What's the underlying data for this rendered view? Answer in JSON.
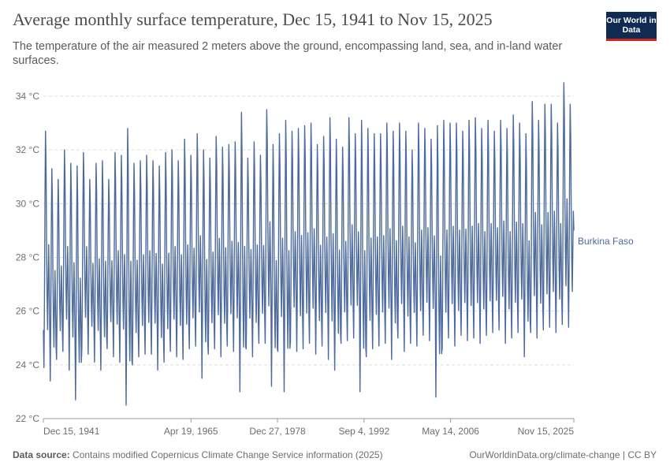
{
  "header": {
    "title": "Average monthly surface temperature, Dec 15, 1941 to Nov 15, 2025",
    "subtitle": "The temperature of the air measured 2 meters above the ground, encompassing land, sea, and in-land water surfaces.",
    "logo_text": "Our World in Data"
  },
  "footer": {
    "source_label": "Data source:",
    "source_text": "Contains modified Copernicus Climate Change Service information (2025)",
    "credit": "OurWorldinData.org/climate-change | CC BY"
  },
  "colors": {
    "series": "#4c6a9c",
    "grid": "#dddddd",
    "axis": "#999999",
    "logo_bg": "#0f2a53",
    "logo_accent": "#ce261e"
  },
  "chart_data": {
    "type": "line",
    "title": "Average monthly surface temperature, Dec 15, 1941 to Nov 15, 2025",
    "xlabel": "",
    "ylabel": "",
    "y_unit": "°C",
    "ylim": [
      22,
      34.5
    ],
    "yticks": [
      22,
      24,
      26,
      28,
      30,
      32,
      34
    ],
    "ytick_labels": [
      "22 °C",
      "24 °C",
      "26 °C",
      "28 °C",
      "30 °C",
      "32 °C",
      "34 °C"
    ],
    "x_range_years": [
      1941.95,
      2025.87
    ],
    "xticks": [
      {
        "year": 1941.95,
        "label": "Dec 15, 1941"
      },
      {
        "year": 1965.3,
        "label": "Apr 19, 1965"
      },
      {
        "year": 1978.99,
        "label": "Dec 27, 1978"
      },
      {
        "year": 1992.68,
        "label": "Sep 4, 1992"
      },
      {
        "year": 2006.37,
        "label": "May 14, 2006"
      },
      {
        "year": 2025.87,
        "label": "Nov 15, 2025"
      }
    ],
    "grid": true,
    "legend": "right, inline label at end of line",
    "series": [
      {
        "name": "Burkina Faso",
        "note": "Monthly values; annual cycle read from plot: Jan min, Apr/May max, Aug dip, Oct secondary peak",
        "start": "1941-12",
        "end": "2025-11",
        "annual_max_apr": {
          "1942": 32.7,
          "1943": 31.3,
          "1944": 30.9,
          "1945": 32.0,
          "1946": 31.5,
          "1947": 31.4,
          "1948": 31.9,
          "1949": 30.9,
          "1950": 31.5,
          "1951": 31.6,
          "1952": 30.9,
          "1953": 31.9,
          "1954": 31.8,
          "1955": 32.8,
          "1956": 31.5,
          "1957": 31.6,
          "1958": 31.8,
          "1959": 31.6,
          "1960": 31.4,
          "1961": 31.9,
          "1962": 32.0,
          "1963": 31.6,
          "1964": 32.4,
          "1965": 31.8,
          "1966": 32.6,
          "1967": 32.0,
          "1968": 31.7,
          "1969": 32.5,
          "1970": 32.1,
          "1971": 32.2,
          "1972": 32.3,
          "1973": 33.4,
          "1974": 31.7,
          "1975": 32.3,
          "1976": 31.8,
          "1977": 33.5,
          "1978": 32.2,
          "1979": 32.6,
          "1980": 33.1,
          "1981": 32.7,
          "1982": 32.8,
          "1983": 32.9,
          "1984": 33.0,
          "1985": 32.2,
          "1986": 32.5,
          "1987": 33.2,
          "1988": 32.4,
          "1989": 32.1,
          "1990": 33.2,
          "1991": 32.6,
          "1992": 33.1,
          "1993": 32.8,
          "1994": 32.6,
          "1995": 32.6,
          "1996": 33.0,
          "1997": 32.7,
          "1998": 33.0,
          "1999": 32.7,
          "2000": 32.0,
          "2001": 33.0,
          "2002": 32.8,
          "2003": 32.4,
          "2004": 32.9,
          "2005": 33.1,
          "2006": 33.0,
          "2007": 33.0,
          "2008": 32.7,
          "2009": 33.1,
          "2010": 33.2,
          "2011": 32.8,
          "2012": 33.1,
          "2013": 32.7,
          "2014": 33.1,
          "2015": 32.8,
          "2016": 33.3,
          "2017": 33.0,
          "2018": 32.6,
          "2019": 33.8,
          "2020": 33.1,
          "2021": 33.7,
          "2022": 33.7,
          "2023": 33.0,
          "2024": 34.5,
          "2025": 33.7
        },
        "annual_min_jan": {
          "1942": 23.9,
          "1943": 23.4,
          "1944": 24.2,
          "1945": 24.5,
          "1946": 23.8,
          "1947": 22.7,
          "1948": 24.6,
          "1949": 24.4,
          "1950": 24.1,
          "1951": 23.8,
          "1952": 24.6,
          "1953": 24.3,
          "1954": 24.1,
          "1955": 22.5,
          "1956": 24.0,
          "1957": 24.3,
          "1958": 24.4,
          "1959": 24.4,
          "1960": 23.8,
          "1961": 24.1,
          "1962": 24.5,
          "1963": 24.3,
          "1964": 24.2,
          "1965": 24.6,
          "1966": 24.7,
          "1967": 23.5,
          "1968": 24.4,
          "1969": 24.6,
          "1970": 24.3,
          "1971": 24.7,
          "1972": 24.5,
          "1973": 23.0,
          "1974": 24.6,
          "1975": 24.3,
          "1976": 24.8,
          "1977": 24.8,
          "1978": 23.2,
          "1979": 24.5,
          "1980": 23.0,
          "1981": 24.9,
          "1982": 24.5,
          "1983": 24.6,
          "1984": 24.8,
          "1985": 24.4,
          "1986": 24.7,
          "1987": 24.2,
          "1988": 23.8,
          "1989": 24.8,
          "1990": 24.9,
          "1991": 25.0,
          "1992": 23.0,
          "1993": 24.3,
          "1994": 24.6,
          "1995": 24.7,
          "1996": 24.8,
          "1997": 24.2,
          "1998": 25.0,
          "1999": 24.5,
          "2000": 24.8,
          "2001": 24.7,
          "2002": 25.1,
          "2003": 24.9,
          "2004": 22.8,
          "2005": 24.6,
          "2006": 25.0,
          "2007": 24.7,
          "2008": 25.1,
          "2009": 24.9,
          "2010": 25.0,
          "2011": 24.8,
          "2012": 25.1,
          "2013": 25.2,
          "2014": 25.3,
          "2015": 24.8,
          "2016": 25.0,
          "2017": 25.2,
          "2018": 24.3,
          "2019": 25.2,
          "2020": 25.0,
          "2021": 25.3,
          "2022": 25.4,
          "2023": 25.2,
          "2024": 25.5,
          "2025": 25.4
        },
        "last_value": 29.0
      }
    ]
  }
}
